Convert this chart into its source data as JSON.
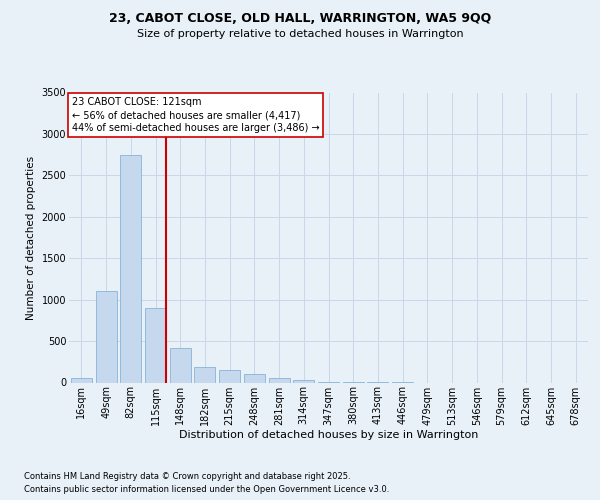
{
  "title_line1": "23, CABOT CLOSE, OLD HALL, WARRINGTON, WA5 9QQ",
  "title_line2": "Size of property relative to detached houses in Warrington",
  "xlabel": "Distribution of detached houses by size in Warrington",
  "ylabel": "Number of detached properties",
  "footnote1": "Contains HM Land Registry data © Crown copyright and database right 2025.",
  "footnote2": "Contains public sector information licensed under the Open Government Licence v3.0.",
  "categories": [
    "16sqm",
    "49sqm",
    "82sqm",
    "115sqm",
    "148sqm",
    "182sqm",
    "215sqm",
    "248sqm",
    "281sqm",
    "314sqm",
    "347sqm",
    "380sqm",
    "413sqm",
    "446sqm",
    "479sqm",
    "513sqm",
    "546sqm",
    "579sqm",
    "612sqm",
    "645sqm",
    "678sqm"
  ],
  "values": [
    60,
    1100,
    2750,
    900,
    420,
    185,
    155,
    100,
    60,
    30,
    10,
    5,
    3,
    1,
    0,
    0,
    0,
    0,
    0,
    0,
    0
  ],
  "bar_color": "#c5d8ed",
  "bar_edge_color": "#7aaad0",
  "grid_color": "#c8d8e8",
  "background_color": "#e8f1f8",
  "vline_color": "#cc0000",
  "vline_bin_index": 3,
  "annotation_line1": "23 CABOT CLOSE: 121sqm",
  "annotation_line2": "← 56% of detached houses are smaller (4,417)",
  "annotation_line3": "44% of semi-detached houses are larger (3,486) →",
  "annotation_box_facecolor": "white",
  "annotation_box_edgecolor": "#cc0000",
  "ylim_max": 3500,
  "yticks": [
    0,
    500,
    1000,
    1500,
    2000,
    2500,
    3000,
    3500
  ],
  "title1_fontsize": 9,
  "title2_fontsize": 8,
  "xlabel_fontsize": 8,
  "ylabel_fontsize": 7.5,
  "tick_fontsize": 7,
  "footnote_fontsize": 6
}
